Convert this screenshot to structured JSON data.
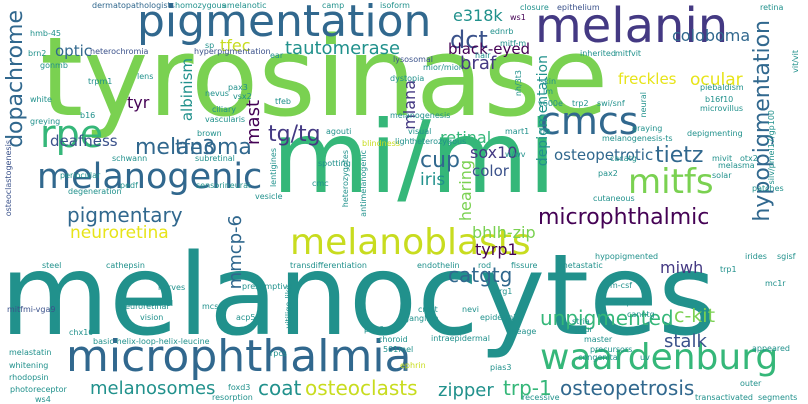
{
  "palette": {
    "light_green": "#7ad151",
    "green": "#35b779",
    "teal": "#21918c",
    "blue": "#31688e",
    "indigo": "#443983",
    "purple": "#440154",
    "yellow": "#c8dc1f",
    "pale_yellow": "#e7e419",
    "grey_blue": "#3b528b"
  },
  "words": {
    "tyrosinase": "tyrosinase",
    "melanocytes": "melanocytes",
    "mi_mi": "mi/mi",
    "pigmentation": "pigmentation",
    "melanin": "melanin",
    "microphthalmia": "microphthalmia",
    "melanogenic": "melanogenic",
    "melanoblasts": "melanoblasts",
    "waardenburg": "waardenburg",
    "rpe": "rpe",
    "cmcs": "cmcs",
    "mitfs": "mitfs",
    "tautomerase": "tautomerase",
    "melanoma": "melanoma",
    "tfe3": "tfe3",
    "tg_tg": "tg/tg",
    "cup": "cup",
    "microphthalmic": "microphthalmic",
    "tietz": "tietz",
    "hypopigmentation": "hypopigmentation",
    "dopachrome": "dopachrome",
    "e318k": "e318k",
    "dct": "dct",
    "black_eyed": "black-eyed",
    "braf": "braf",
    "freckles": "freckles",
    "ocular": "ocular",
    "coloboma": "coloboma",
    "mast": "mast",
    "tfec": "tfec",
    "optic": "optic",
    "tyr": "tyr",
    "deafness": "deafness",
    "albinism": "albinism",
    "pigmentary": "pigmentary",
    "neuroretina": "neuroretina",
    "mmcp_6": "mmcp-6",
    "melanosomes": "melanosomes",
    "coat": "coat",
    "osteoclasts": "osteoclasts",
    "zipper": "zipper",
    "trp_1": "trp-1",
    "osteopetrosis": "osteopetrosis",
    "unpigmented": "unpigmented",
    "stalk": "stalk",
    "c_kit": "c-kit",
    "catgtg": "catgtg",
    "typr1": "tyrp1",
    "bhlh_zip": "bhlh-zip",
    "miwh": "miwh",
    "hearing": "hearing",
    "color": "color",
    "iris": "iris",
    "sox10": "sox10",
    "retinal": "retinal",
    "mlana": "mlana",
    "osteopetrotic": "osteopetrotic",
    "depigmentation": "depigmentation",
    "dermatopathologists": "dermatopathologists",
    "homozygous": "homozygous",
    "amelanotic": "amelanotic",
    "camp": "camp",
    "isoform": "isoform",
    "ws1": "ws1",
    "closure": "closure",
    "epithelium": "epithelium",
    "retina": "retina",
    "ednrb": "ednrb",
    "mitf_m": "mitf-m",
    "hmb_45": "hmb-45",
    "heterochromia": "heterochromia",
    "hyperpigmentation": "hyperpigmentation",
    "ear": "ear",
    "lysosomal": "lysosomal",
    "mior_mior": "mior/mior",
    "hair": "hair",
    "inherited": "inherited",
    "mitfvit": "mitfvit",
    "brn2": "brn2",
    "gonmb": "gonmb",
    "trpm1": "trpm1",
    "lens": "lens",
    "white": "white",
    "b16": "b16",
    "greying": "greying",
    "nevus": "nevus",
    "pax3": "pax3",
    "vsx2": "vsx2",
    "ciliary": "ciliary",
    "vascularis": "vascularis",
    "tfeb": "tfeb",
    "dystopia": "dystopia",
    "skin": "skin",
    "lm": "lm",
    "v600e": "v600e",
    "nh3": "nh/3t3",
    "trp2": "trp2",
    "swi_snf": "swi/snf",
    "neural": "neural",
    "microvillus": "microvillus",
    "b16f10": "b16f10",
    "vit_vit": "vit/vit",
    "piebaldism": "piebaldism",
    "graying": "graying",
    "depigmenting": "depigmenting",
    "melanogenesis_ts": "melanogenesis-ts",
    "mivit": "mivit",
    "otx2": "otx2",
    "silv_pmel17_gp100": "silv/pmel17/gp100",
    "brown": "brown",
    "schwann": "schwann",
    "subretinal": "subretinal",
    "pedf": "pedf",
    "sensorineural": "sensorineural",
    "periocular": "periocular",
    "lentigines": "lentigines",
    "spotting": "spotting",
    "agouti": "agouti",
    "mart1": "mart1",
    "ww": "w/wv",
    "ov": "ov",
    "cacatg": "cacatg",
    "pax2": "pax2",
    "melasma": "melasma",
    "solar": "solar",
    "cutaneous": "cutaneous",
    "patches": "patches",
    "osteoclastogenesis": "osteoclastogenesis",
    "degeneration": "degeneration",
    "cmc": "cmc",
    "vesicle": "vesicle",
    "antimelanogenic": "antimelanogenic",
    "heterozygotes": "heterozygotes",
    "blindness": "blindness",
    "light": "light",
    "visual": "visual",
    "heterozygous": "heterozygous",
    "melanogenesis": "melanogenesis",
    "transdifferentiation": "transdifferentiation",
    "endothelin": "endothelin",
    "rod": "rod",
    "fissure": "fissure",
    "metastatic": "metastatic",
    "hypopigmented": "hypopigmented",
    "irides": "irides",
    "sgisf": "sgisf",
    "steel": "steel",
    "cathepsin": "cathepsin",
    "presumptive": "presumptive",
    "nerves": "nerves",
    "dermal": "dermal",
    "mcscs": "mcscs",
    "vitiligo_like": "vitiligo-like",
    "acp5": "acp5",
    "crest": "crest",
    "brg1": "brg1",
    "m_csf": "m-csf",
    "trp1": "trp1",
    "mc1r": "mc1r",
    "mitfmi_vga9": "mitfmi-vga9",
    "chx10": "chx10",
    "neuroretinal": "neuroretinal",
    "vision": "vision",
    "ganglion": "ganglion",
    "nevi": "nevi",
    "epidermis": "epidermis",
    "serpinf1": "serpinf1",
    "canntg": "canntg",
    "stria": "stria",
    "colour": "colour",
    "basic_helix": "basic-helix-loop-helix-leucine",
    "pax6": "pax6",
    "intraepidermal": "intraepidermal",
    "lineage": "lineage",
    "master": "master",
    "precursors": "precursors",
    "appeared": "appeared",
    "melastatin": "melastatin",
    "rhodopsin": "rhodopsin",
    "whitening": "whitening",
    "rpcs": "rpcs",
    "choroid": "choroid",
    "501mel": "501mel",
    "pias3": "pias3",
    "congenital": "congenital",
    "uv": "uv",
    "photoreceptor": "photoreceptor",
    "ws4": "ws4",
    "foxd3": "foxd3",
    "resorption": "resorption",
    "recessive": "recessive",
    "transactivated": "transactivated",
    "outer": "outer",
    "segments": "segments",
    "ephrin": "ephrin",
    "sp": "sp"
  }
}
